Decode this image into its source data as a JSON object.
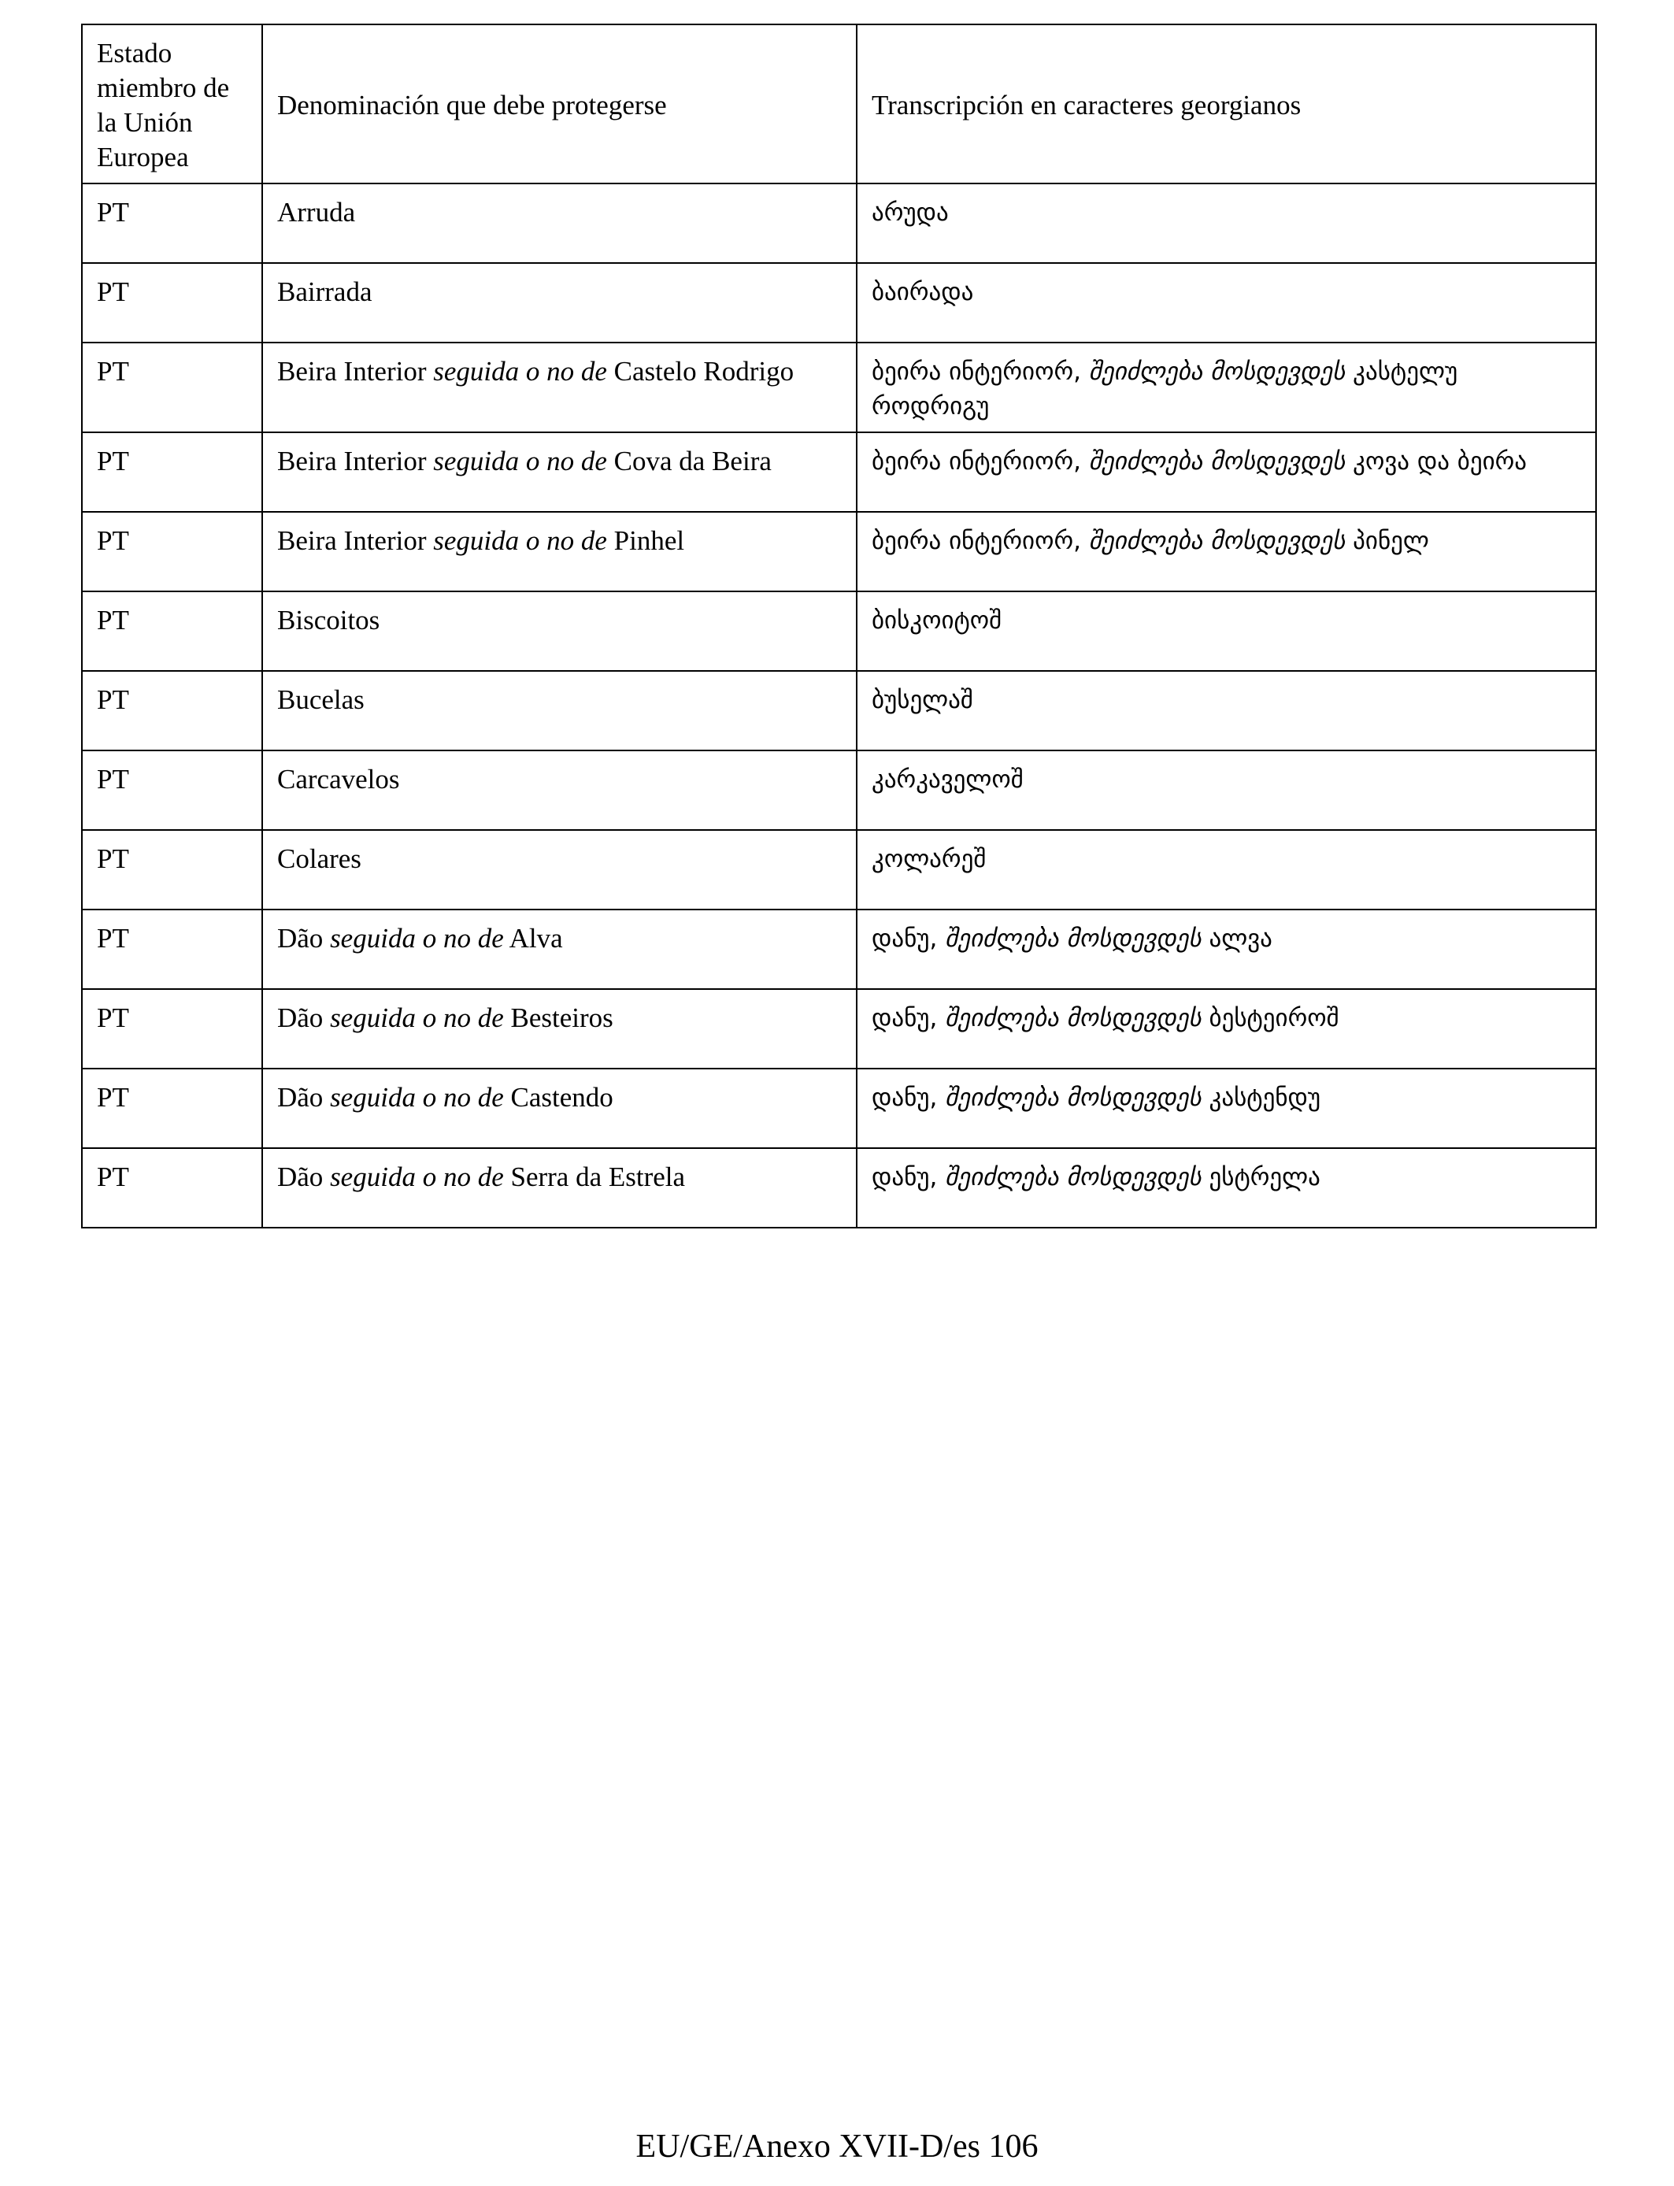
{
  "table": {
    "headers": [
      "Estado miembro de la Unión Europea",
      "Denominación que debe protegerse",
      "Transcripción en caracteres georgianos"
    ],
    "rows": [
      {
        "state": "PT",
        "name": {
          "main": "Arruda"
        },
        "georgian": {
          "main": "არუდა"
        }
      },
      {
        "state": "PT",
        "name": {
          "main": "Bairrada"
        },
        "georgian": {
          "main": "ბაირადა"
        }
      },
      {
        "state": "PT",
        "name": {
          "main": "Beira Interior",
          "connector": "seguida o no de",
          "sub": "Castelo Rodrigo"
        },
        "georgian": {
          "main": "ბეირა ინტერიორ,",
          "connector": "შეიძლება მოსდევდეს",
          "sub": "კასტელუ როდრიგუ"
        }
      },
      {
        "state": "PT",
        "name": {
          "main": "Beira Interior",
          "connector": "seguida o no de",
          "sub": "Cova da Beira"
        },
        "georgian": {
          "main": "ბეირა ინტერიორ,",
          "connector": "შეიძლება მოსდევდეს",
          "sub": "კოვა და ბეირა"
        }
      },
      {
        "state": "PT",
        "name": {
          "main": "Beira Interior",
          "connector": "seguida o no de",
          "sub": "Pinhel"
        },
        "georgian": {
          "main": "ბეირა ინტერიორ,",
          "connector": "შეიძლება მოსდევდეს",
          "sub": "პინელ"
        }
      },
      {
        "state": "PT",
        "name": {
          "main": "Biscoitos"
        },
        "georgian": {
          "main": "ბისკოიტოშ"
        }
      },
      {
        "state": "PT",
        "name": {
          "main": "Bucelas"
        },
        "georgian": {
          "main": "ბუსელაშ"
        }
      },
      {
        "state": "PT",
        "name": {
          "main": "Carcavelos"
        },
        "georgian": {
          "main": "კარკაველოშ"
        }
      },
      {
        "state": "PT",
        "name": {
          "main": "Colares"
        },
        "georgian": {
          "main": "კოლარეშ"
        }
      },
      {
        "state": "PT",
        "name": {
          "main": "Dão",
          "connector": "seguida o no de",
          "sub": "Alva"
        },
        "georgian": {
          "main": "დანუ,",
          "connector": "შეიძლება მოსდევდეს",
          "sub": "ალვა"
        }
      },
      {
        "state": "PT",
        "name": {
          "main": "Dão",
          "connector": "seguida o no de",
          "sub": "Besteiros"
        },
        "georgian": {
          "main": "დანუ,",
          "connector": "შეიძლება მოსდევდეს",
          "sub": "ბესტეიროშ"
        }
      },
      {
        "state": "PT",
        "name": {
          "main": "Dão",
          "connector": "seguida o no de",
          "sub": "Castendo"
        },
        "georgian": {
          "main": "დანუ,",
          "connector": "შეიძლება მოსდევდეს",
          "sub": "კასტენდუ"
        }
      },
      {
        "state": "PT",
        "name": {
          "main": "Dão",
          "connector": "seguida o no de",
          "sub": "Serra da Estrela"
        },
        "georgian": {
          "main": "დანუ,",
          "connector": "შეიძლება მოსდევდეს",
          "sub": "ესტრელა"
        }
      }
    ]
  },
  "footer": "EU/GE/Anexo XVII-D/es 106"
}
